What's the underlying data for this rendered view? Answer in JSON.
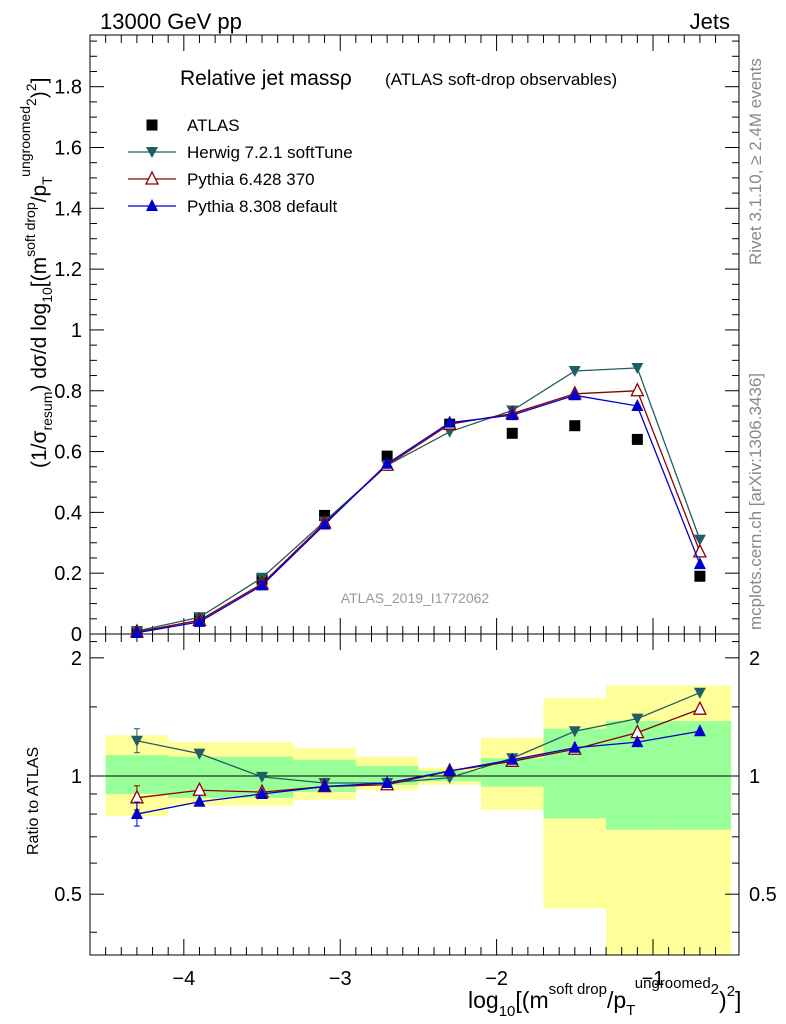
{
  "header": {
    "left": "13000 GeV pp",
    "right": "Jets"
  },
  "side_text": {
    "rivet": "Rivet 3.1.10, ≥ 2.4M events",
    "mcplots": "mcplots.cern.ch [arXiv:1306.3436]"
  },
  "watermark": "ATLAS_2019_I1772062",
  "title": {
    "main": "Relative jet massρ",
    "sub": "(ATLAS soft-drop observables)"
  },
  "colors": {
    "atlas": "#000000",
    "herwig": "#1f5f63",
    "pythia6": "#8b0000",
    "pythia8": "#0000cc",
    "band_inner": "#99ff99",
    "band_outer": "#ffff99"
  },
  "chart_data": [
    {
      "type": "line",
      "panel": "main",
      "ylabel": "(1/σ_resum) dσ/d log10[(m^soft drop/p_T^ungroomed)^2]",
      "xlim": [
        -4.6,
        -0.45
      ],
      "ylim": [
        0,
        1.97
      ],
      "y_ticks": [
        "0",
        "0.2",
        "0.4",
        "0.6",
        "0.8",
        "1",
        "1.2",
        "1.4",
        "1.6",
        "1.8"
      ],
      "x": [
        -4.3,
        -3.9,
        -3.5,
        -3.1,
        -2.7,
        -2.3,
        -1.9,
        -1.5,
        -1.1,
        -0.7
      ],
      "series": [
        {
          "name": "ATLAS",
          "values": [
            0.005,
            0.05,
            0.18,
            0.39,
            0.585,
            0.69,
            0.66,
            0.685,
            0.64,
            0.19
          ]
        },
        {
          "name": "Herwig 7.2.1 softTune",
          "values": [
            0.01,
            0.055,
            0.185,
            0.37,
            0.555,
            0.665,
            0.735,
            0.865,
            0.875,
            0.31
          ]
        },
        {
          "name": "Pythia 6.428 370",
          "values": [
            0.007,
            0.045,
            0.165,
            0.365,
            0.555,
            0.69,
            0.725,
            0.79,
            0.8,
            0.27
          ]
        },
        {
          "name": "Pythia 8.308 default",
          "values": [
            0.004,
            0.04,
            0.16,
            0.36,
            0.56,
            0.695,
            0.72,
            0.785,
            0.75,
            0.23
          ]
        }
      ]
    },
    {
      "type": "line",
      "panel": "ratio",
      "ylabel": "Ratio to ATLAS",
      "xlabel": "log10[(m^soft drop/p_T^ungroomed)^2]",
      "xlim": [
        -4.6,
        -0.45
      ],
      "ylim": [
        0.35,
        2.3
      ],
      "y_ticks": [
        "0.5",
        "1",
        "2"
      ],
      "x_ticks": [
        "−4",
        "−3",
        "−2",
        "−1"
      ],
      "x": [
        -4.3,
        -3.9,
        -3.5,
        -3.1,
        -2.7,
        -2.3,
        -1.9,
        -1.5,
        -1.1,
        -0.7
      ],
      "bin_edges": [
        -4.5,
        -4.1,
        -3.7,
        -3.3,
        -2.9,
        -2.5,
        -2.1,
        -1.7,
        -1.3,
        -0.9,
        -0.5
      ],
      "band_inner": [
        [
          0.9,
          1.13
        ],
        [
          0.88,
          1.12
        ],
        [
          0.88,
          1.12
        ],
        [
          0.91,
          1.1
        ],
        [
          0.95,
          1.06
        ],
        [
          0.97,
          1.03
        ],
        [
          0.94,
          1.11
        ],
        [
          0.78,
          1.32
        ],
        [
          0.73,
          1.38
        ],
        [
          0.73,
          1.38
        ]
      ],
      "band_outer": [
        [
          0.79,
          1.27
        ],
        [
          0.84,
          1.22
        ],
        [
          0.84,
          1.22
        ],
        [
          0.87,
          1.18
        ],
        [
          0.92,
          1.12
        ],
        [
          0.95,
          1.05
        ],
        [
          0.82,
          1.25
        ],
        [
          0.46,
          1.58
        ],
        [
          0.33,
          1.7
        ],
        [
          0.33,
          1.7
        ]
      ],
      "series": [
        {
          "name": "Herwig 7.2.1 softTune",
          "values": [
            1.23,
            1.14,
            0.995,
            0.96,
            0.96,
            0.99,
            1.11,
            1.3,
            1.4,
            1.63
          ]
        },
        {
          "name": "Pythia 6.428 370",
          "values": [
            0.88,
            0.92,
            0.91,
            0.94,
            0.95,
            1.03,
            1.09,
            1.17,
            1.29,
            1.48
          ]
        },
        {
          "name": "Pythia 8.308 default",
          "values": [
            0.8,
            0.86,
            0.9,
            0.94,
            0.96,
            1.03,
            1.1,
            1.18,
            1.22,
            1.3
          ]
        }
      ]
    }
  ]
}
